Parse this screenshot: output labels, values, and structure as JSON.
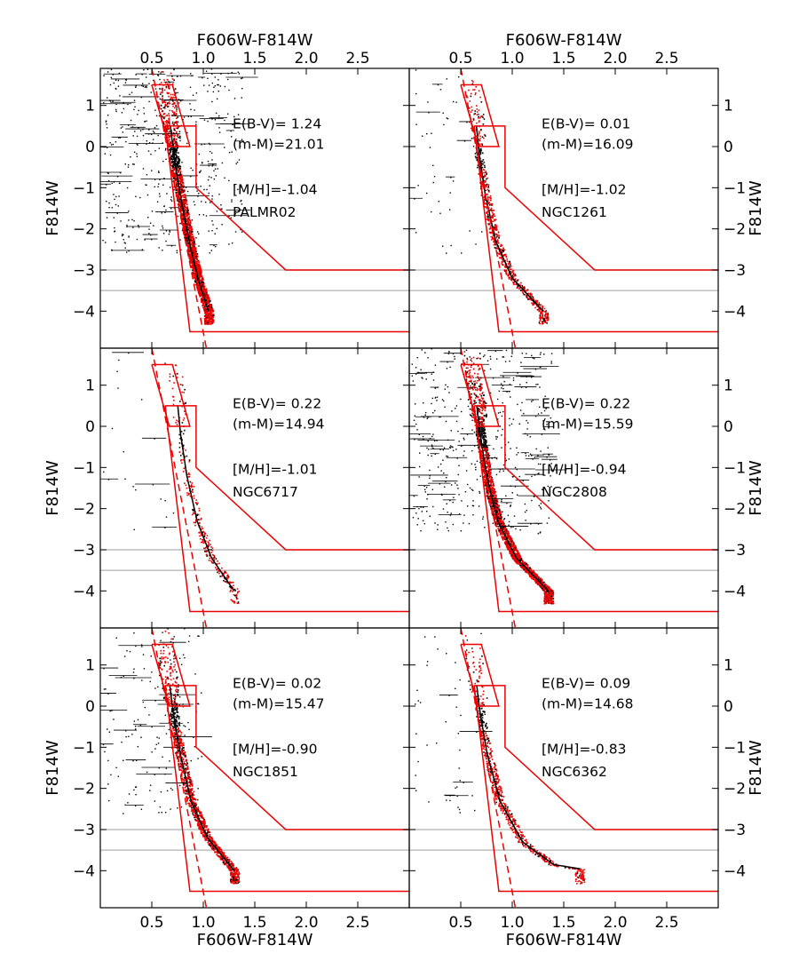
{
  "figure": {
    "top_xlabel": "F606W-F814W",
    "bottom_xlabel": "F606W-F814W",
    "ylabel": "F814W",
    "x_ticks": [
      0.5,
      1.0,
      1.5,
      2.0,
      2.5
    ],
    "y_ticks": [
      -4,
      -3,
      -2,
      -1,
      0,
      1
    ],
    "xlim": [
      0.0,
      3.0
    ],
    "ylim": [
      1.9,
      -4.9
    ],
    "reference_lines": [
      -3.5,
      -3.0
    ],
    "colors": {
      "selected": "#ee0000",
      "field": "#000000",
      "boxes": "#ee0000",
      "isochrone": "#000000",
      "reference": "#b0b0b0"
    }
  },
  "chart_data": [
    {
      "type": "scatter",
      "cluster": "PALMR02",
      "metallicity": "[M/H]=-1.04",
      "distance_modulus": "(m-M)=21.01",
      "reddening": "E(B-V)= 1.24",
      "isochrone_end": [
        1.05,
        -4.0
      ],
      "rgb": [
        [
          0.63,
          1.8
        ],
        [
          0.68,
          0.5
        ],
        [
          0.73,
          -0.5
        ],
        [
          0.8,
          -1.5
        ],
        [
          0.88,
          -2.5
        ],
        [
          0.96,
          -3.3
        ],
        [
          1.05,
          -4.0
        ]
      ],
      "density": "very-high",
      "field_spread": "wide",
      "show_isochrone": true
    },
    {
      "type": "scatter",
      "cluster": "NGC1261",
      "metallicity": "[M/H]=-1.02",
      "distance_modulus": "(m-M)=16.09",
      "reddening": "E(B-V)= 0.01",
      "isochrone_end": [
        1.3,
        -4.0
      ],
      "rgb": [
        [
          0.6,
          1.8
        ],
        [
          0.64,
          0.8
        ],
        [
          0.68,
          -0.2
        ],
        [
          0.74,
          -1.2
        ],
        [
          0.84,
          -2.3
        ],
        [
          1.0,
          -3.2
        ],
        [
          1.3,
          -4.0
        ]
      ],
      "density": "medium",
      "field_spread": "narrow",
      "show_isochrone": true
    },
    {
      "type": "scatter",
      "cluster": "NGC6717",
      "metallicity": "[M/H]=-1.01",
      "distance_modulus": "(m-M)=14.94",
      "reddening": "E(B-V)= 0.22",
      "isochrone_end": [
        1.3,
        -4.0
      ],
      "rgb": [
        [
          0.7,
          1.8
        ],
        [
          0.74,
          0.8
        ],
        [
          0.78,
          -0.2
        ],
        [
          0.84,
          -1.2
        ],
        [
          0.94,
          -2.3
        ],
        [
          1.08,
          -3.2
        ],
        [
          1.3,
          -4.0
        ]
      ],
      "density": "low",
      "field_spread": "narrow",
      "show_isochrone": true
    },
    {
      "type": "scatter",
      "cluster": "NGC2808",
      "metallicity": "[M/H]=-0.94",
      "distance_modulus": "(m-M)=15.59",
      "reddening": "E(B-V)= 0.22",
      "isochrone_end": [
        1.35,
        -4.0
      ],
      "rgb": [
        [
          0.6,
          1.8
        ],
        [
          0.64,
          0.8
        ],
        [
          0.69,
          -0.2
        ],
        [
          0.75,
          -1.2
        ],
        [
          0.86,
          -2.3
        ],
        [
          1.04,
          -3.2
        ],
        [
          1.35,
          -4.0
        ]
      ],
      "density": "very-high",
      "field_spread": "wide",
      "show_isochrone": true
    },
    {
      "type": "scatter",
      "cluster": "NGC1851",
      "metallicity": "[M/H]=-0.90",
      "distance_modulus": "(m-M)=15.47",
      "reddening": "E(B-V)= 0.02",
      "isochrone_end": [
        1.3,
        -4.0
      ],
      "rgb": [
        [
          0.62,
          1.8
        ],
        [
          0.66,
          0.8
        ],
        [
          0.71,
          -0.2
        ],
        [
          0.78,
          -1.2
        ],
        [
          0.88,
          -2.3
        ],
        [
          1.04,
          -3.2
        ],
        [
          1.3,
          -4.0
        ]
      ],
      "density": "high",
      "field_spread": "medium",
      "show_isochrone": true
    },
    {
      "type": "scatter",
      "cluster": "NGC6362",
      "metallicity": "[M/H]=-0.83",
      "distance_modulus": "(m-M)=14.68",
      "reddening": "E(B-V)= 0.09",
      "isochrone_end": [
        1.65,
        -3.95
      ],
      "rgb": [
        [
          0.6,
          1.8
        ],
        [
          0.64,
          0.8
        ],
        [
          0.69,
          -0.2
        ],
        [
          0.76,
          -1.2
        ],
        [
          0.88,
          -2.3
        ],
        [
          1.1,
          -3.3
        ],
        [
          1.4,
          -3.85
        ],
        [
          1.65,
          -3.95
        ]
      ],
      "density": "medium",
      "field_spread": "narrow",
      "show_isochrone": true
    }
  ]
}
